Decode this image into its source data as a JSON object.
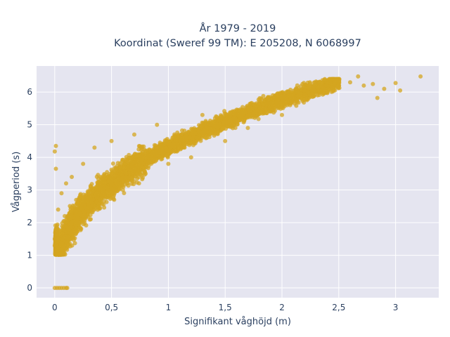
{
  "chart_data": {
    "type": "scatter",
    "title_lines": [
      "År 1979 - 2019",
      "Koordinat (Sweref 99 TM): E 205208, N 6068997"
    ],
    "xlabel": "Signifikant våghöjd (m)",
    "ylabel": "Vågperiod (s)",
    "xlim": [
      -0.16,
      3.38
    ],
    "ylim": [
      -0.3,
      6.8
    ],
    "x_ticks": [
      0,
      0.5,
      1,
      1.5,
      2,
      2.5,
      3
    ],
    "x_tick_labels": [
      "0",
      "0,5",
      "1",
      "1,5",
      "2",
      "2,5",
      "3"
    ],
    "y_ticks": [
      0,
      1,
      2,
      3,
      4,
      5,
      6
    ],
    "y_tick_labels": [
      "0",
      "1",
      "2",
      "3",
      "4",
      "5",
      "6"
    ],
    "grid": true,
    "background": "#e5e5f0",
    "marker_color": "#d4a520",
    "marker_opacity": 0.75,
    "relationship": "y ≈ 4.3 * x^0.42 for x > 0.03; zero-period cluster at y = 0 for x in [0, 0.11]",
    "points": [
      {
        "x": 0.0,
        "y": 0.0
      },
      {
        "x": 0.02,
        "y": 0.0
      },
      {
        "x": 0.04,
        "y": 0.0
      },
      {
        "x": 0.06,
        "y": 0.0
      },
      {
        "x": 0.08,
        "y": 0.0
      },
      {
        "x": 0.1,
        "y": 0.0
      },
      {
        "x": 0.11,
        "y": 0.0
      },
      {
        "x": 0.01,
        "y": 4.35
      },
      {
        "x": 0.0,
        "y": 4.18
      },
      {
        "x": 0.01,
        "y": 3.65
      },
      {
        "x": 0.0,
        "y": 1.3
      },
      {
        "x": 0.0,
        "y": 1.5
      },
      {
        "x": 0.02,
        "y": 1.1
      },
      {
        "x": 0.03,
        "y": 2.4
      },
      {
        "x": 0.05,
        "y": 1.05
      },
      {
        "x": 0.06,
        "y": 2.9
      },
      {
        "x": 0.08,
        "y": 1.1
      },
      {
        "x": 0.1,
        "y": 3.2
      },
      {
        "x": 0.12,
        "y": 1.8
      },
      {
        "x": 0.15,
        "y": 3.4
      },
      {
        "x": 0.2,
        "y": 2.2
      },
      {
        "x": 0.25,
        "y": 3.8
      },
      {
        "x": 0.3,
        "y": 2.5
      },
      {
        "x": 0.35,
        "y": 4.3
      },
      {
        "x": 0.45,
        "y": 2.8
      },
      {
        "x": 0.5,
        "y": 4.5
      },
      {
        "x": 0.6,
        "y": 3.0
      },
      {
        "x": 0.7,
        "y": 4.7
      },
      {
        "x": 0.8,
        "y": 3.5
      },
      {
        "x": 0.9,
        "y": 5.0
      },
      {
        "x": 1.0,
        "y": 3.8
      },
      {
        "x": 1.2,
        "y": 4.0
      },
      {
        "x": 1.3,
        "y": 5.3
      },
      {
        "x": 1.5,
        "y": 4.5
      },
      {
        "x": 1.7,
        "y": 4.9
      },
      {
        "x": 1.8,
        "y": 5.6
      },
      {
        "x": 2.0,
        "y": 5.3
      },
      {
        "x": 2.2,
        "y": 5.9
      },
      {
        "x": 2.4,
        "y": 6.0
      },
      {
        "x": 2.5,
        "y": 6.2
      },
      {
        "x": 2.6,
        "y": 6.3
      },
      {
        "x": 2.67,
        "y": 6.48
      },
      {
        "x": 2.72,
        "y": 6.2
      },
      {
        "x": 2.8,
        "y": 6.25
      },
      {
        "x": 2.84,
        "y": 5.82
      },
      {
        "x": 2.9,
        "y": 6.1
      },
      {
        "x": 3.0,
        "y": 6.28
      },
      {
        "x": 3.04,
        "y": 6.05
      },
      {
        "x": 3.22,
        "y": 6.48
      }
    ]
  }
}
